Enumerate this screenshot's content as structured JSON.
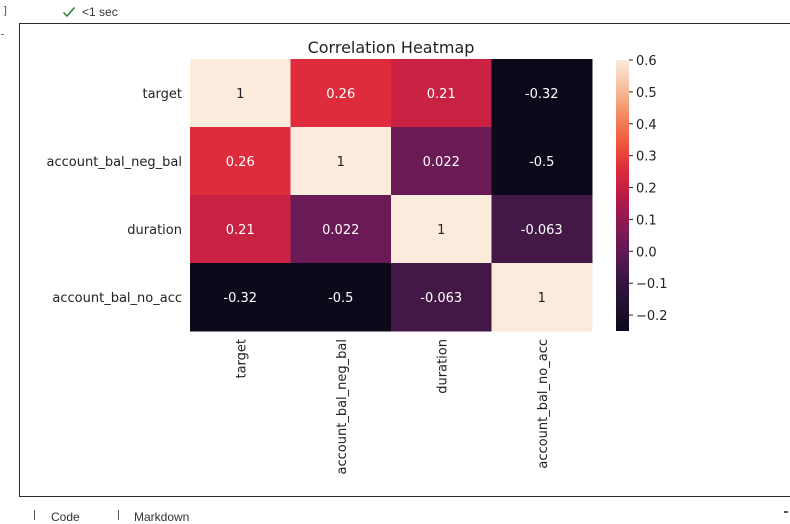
{
  "cell": {
    "bracket": "]",
    "exec_time": "<1 sec",
    "check_icon": "check-icon",
    "check_color": "#2e7d32"
  },
  "add_cell": {
    "code_label": "Code",
    "markdown_label": "Markdown"
  },
  "chart_data": {
    "type": "heatmap",
    "title": "Correlation Heatmap",
    "rows": [
      "target",
      "account_bal_neg_bal",
      "duration",
      "account_bal_no_acc"
    ],
    "columns": [
      "target",
      "account_bal_neg_bal",
      "duration",
      "account_bal_no_acc"
    ],
    "values": [
      [
        1,
        0.26,
        0.21,
        -0.32
      ],
      [
        0.26,
        1,
        0.022,
        -0.5
      ],
      [
        0.21,
        0.022,
        1,
        -0.063
      ],
      [
        -0.32,
        -0.5,
        -0.063,
        1
      ]
    ],
    "annotations": [
      [
        "1",
        "0.26",
        "0.21",
        "-0.32"
      ],
      [
        "0.26",
        "1",
        "0.022",
        "-0.5"
      ],
      [
        "0.21",
        "0.022",
        "1",
        "-0.063"
      ],
      [
        "-0.32",
        "-0.5",
        "-0.063",
        "1"
      ]
    ],
    "colorscale": "rocket",
    "colorbar": {
      "vmin": -0.25,
      "vmax": 0.6,
      "ticks": [
        0.6,
        0.5,
        0.4,
        0.3,
        0.2,
        0.1,
        0.0,
        -0.1,
        -0.2
      ],
      "tick_labels": [
        "0.6",
        "0.5",
        "0.4",
        "0.3",
        "0.2",
        "0.1",
        "0.0",
        "−0.1",
        "−0.2"
      ]
    }
  }
}
